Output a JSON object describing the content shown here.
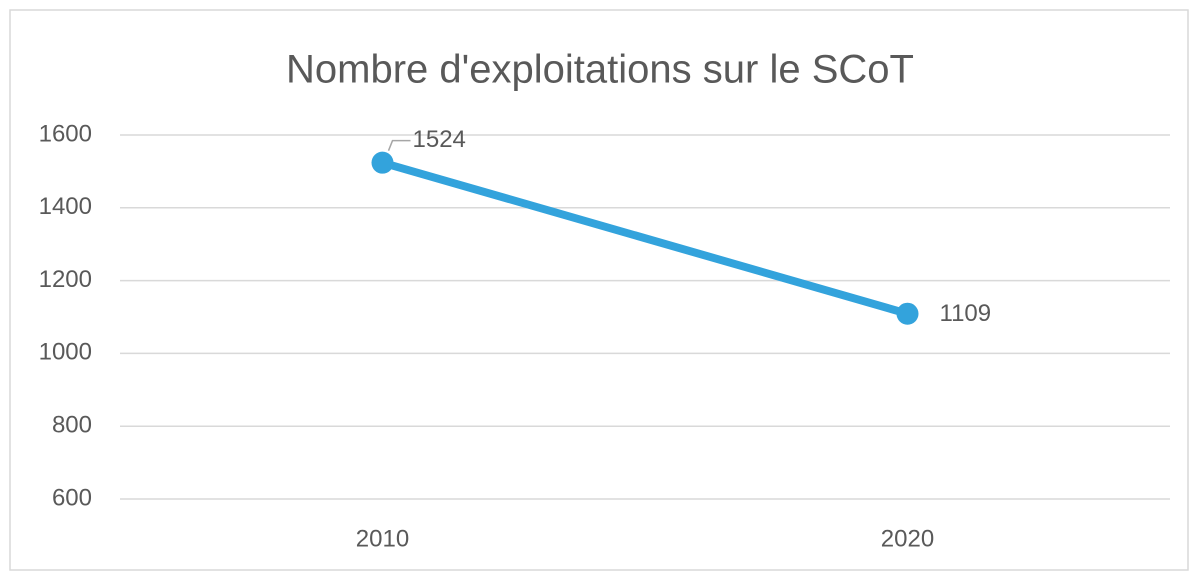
{
  "chart_data": {
    "type": "line",
    "title": "Nombre d'exploitations sur le SCoT",
    "categories": [
      "2010",
      "2020"
    ],
    "values": [
      1524,
      1109
    ],
    "color": "#33a3dc",
    "ylim": [
      600,
      1600
    ],
    "yticks": [
      600,
      800,
      1000,
      1200,
      1400,
      1600
    ],
    "grid": true
  }
}
